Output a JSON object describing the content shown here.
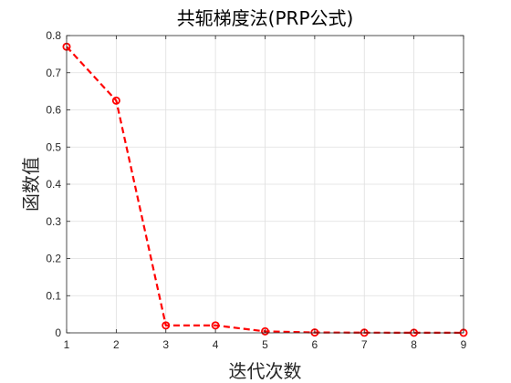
{
  "chart_data": {
    "type": "line",
    "title": "共轭梯度法(PRP公式)",
    "xlabel": "迭代次数",
    "ylabel": "函数值",
    "x": [
      1,
      2,
      3,
      4,
      5,
      6,
      7,
      8,
      9
    ],
    "xlim": [
      1,
      9
    ],
    "ylim": [
      0,
      0.8
    ],
    "xticks": [
      "1",
      "2",
      "3",
      "4",
      "5",
      "6",
      "7",
      "8",
      "9"
    ],
    "yticks": [
      "0",
      "0.1",
      "0.2",
      "0.3",
      "0.4",
      "0.5",
      "0.6",
      "0.7",
      "0.8"
    ],
    "grid": true,
    "series": [
      {
        "values": [
          0.77,
          0.625,
          0.02,
          0.02,
          0.004,
          0.001,
          0.0005,
          0.0003,
          0.0002
        ],
        "color": "#ff0000",
        "line_style": "dashed",
        "marker": "circle"
      }
    ]
  }
}
